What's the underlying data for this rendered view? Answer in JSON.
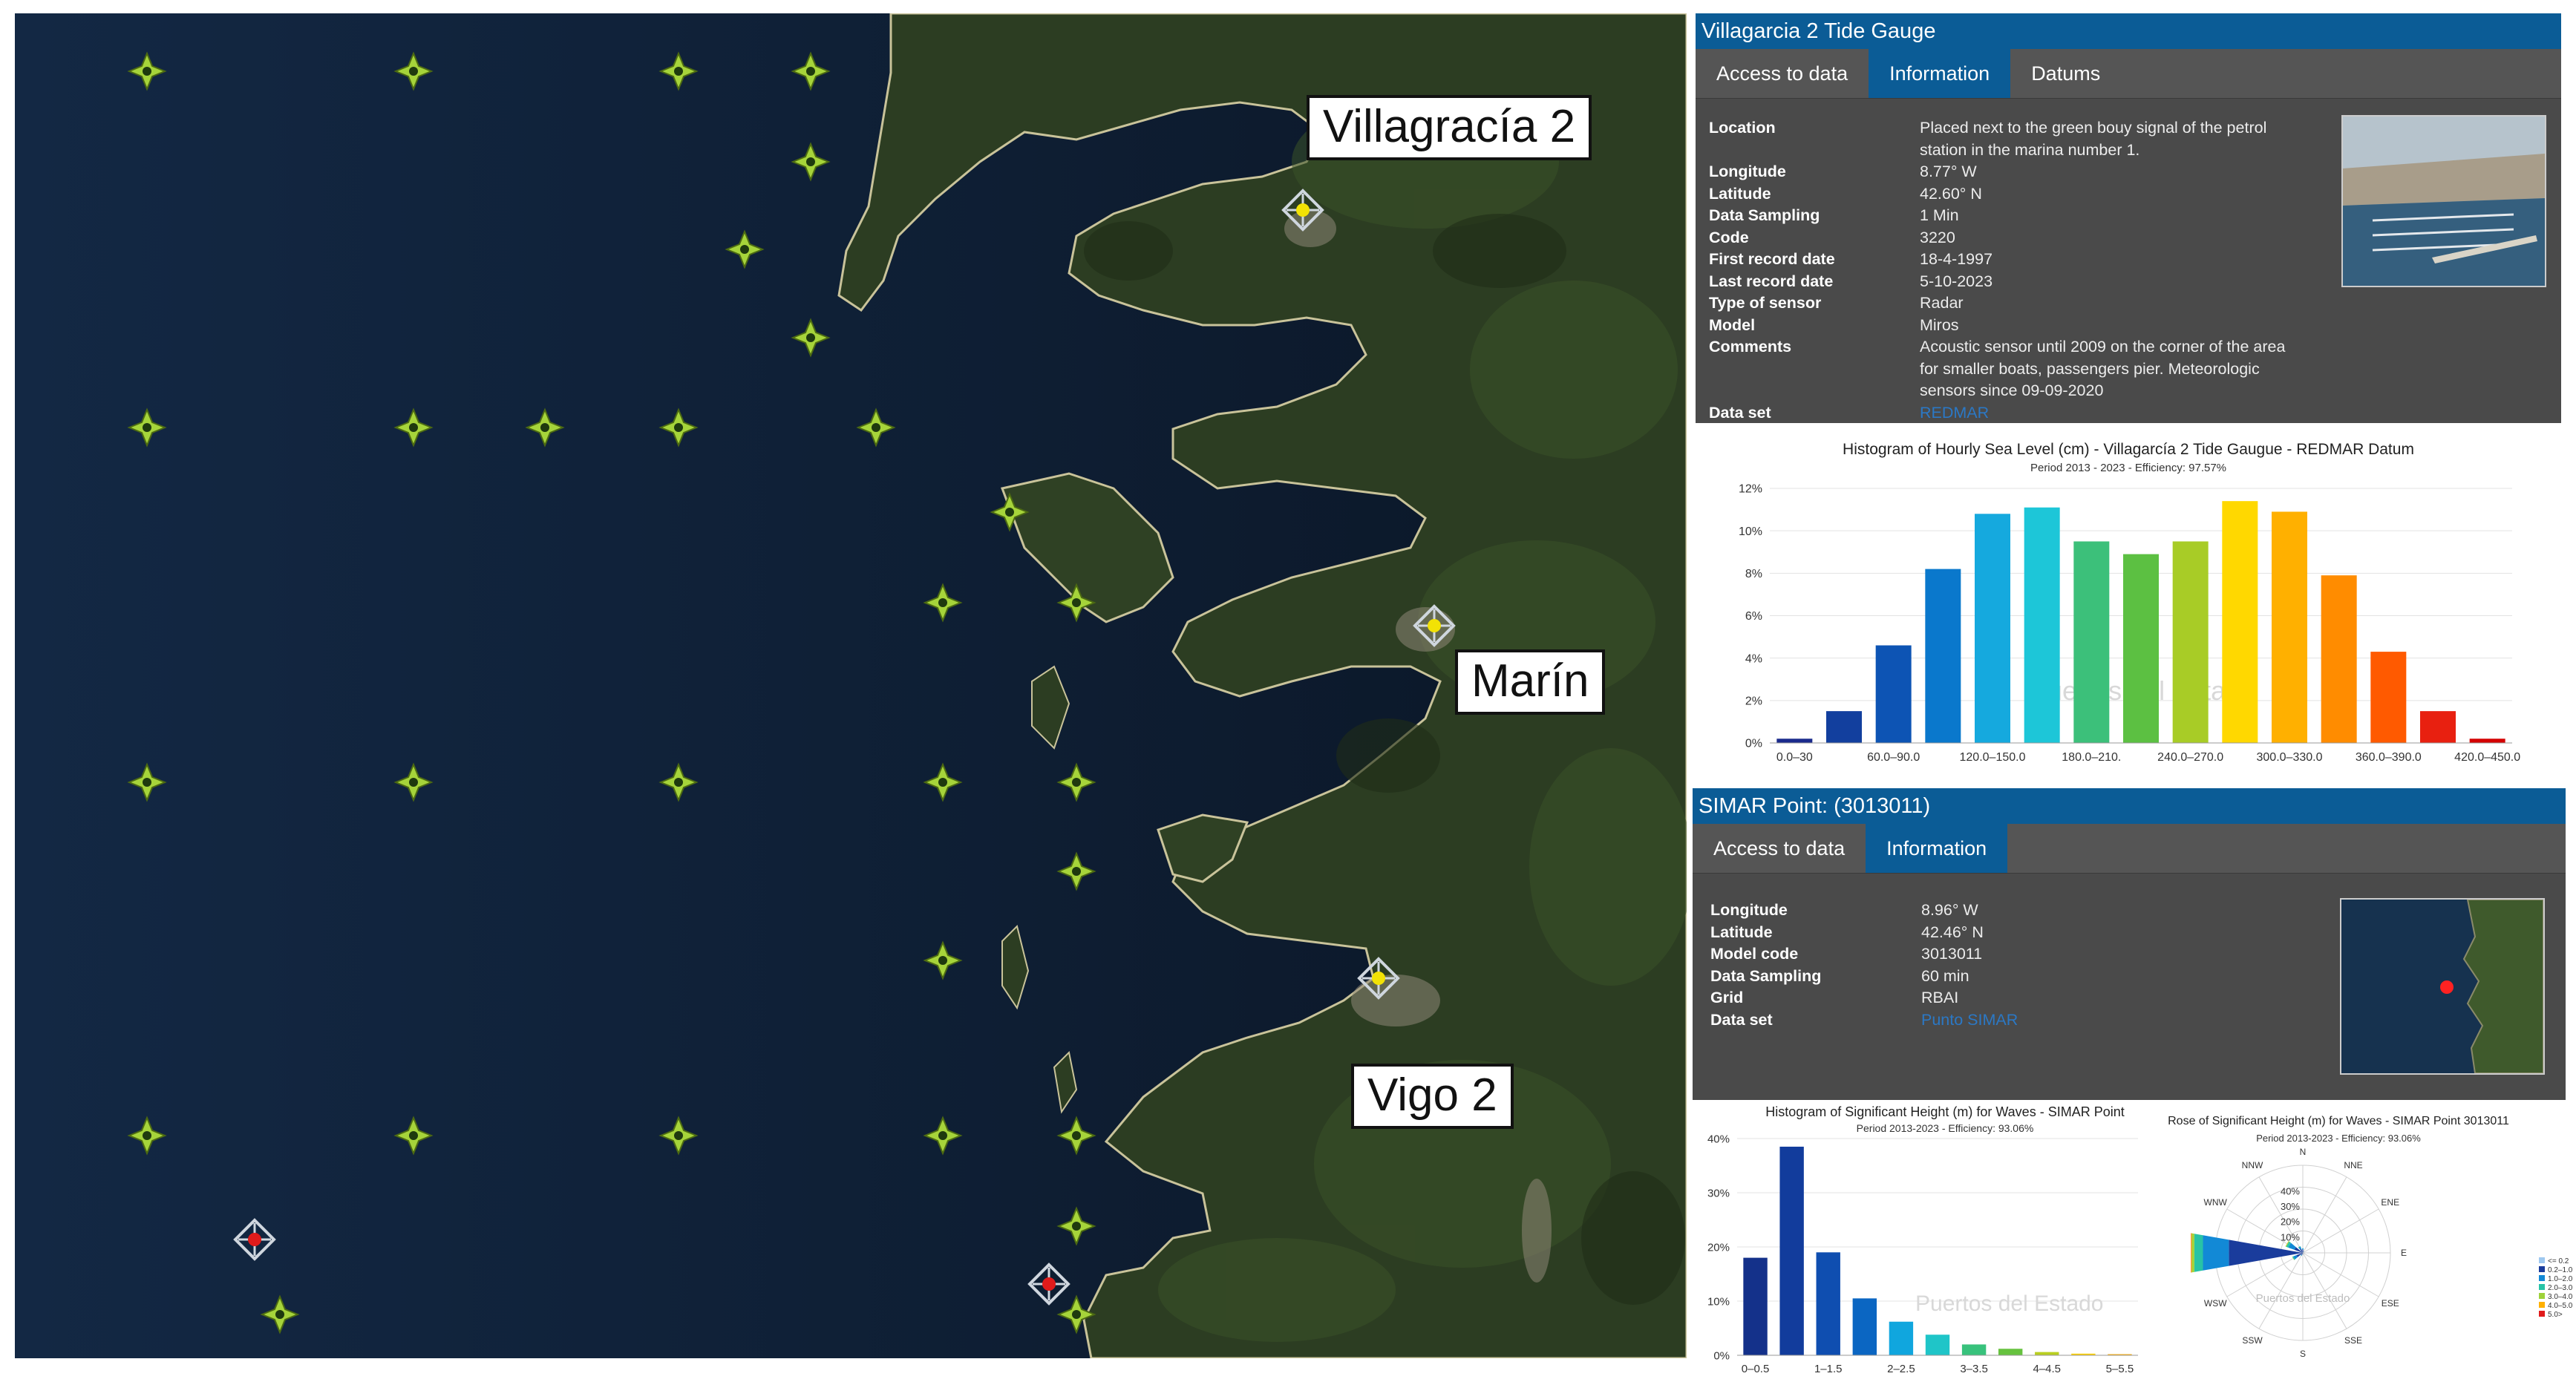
{
  "map": {
    "labels": {
      "villagarcia": "Villagracía 2",
      "marin": "Marín",
      "vigo": "Vigo 2"
    },
    "colors": {
      "sea": "#0d1b2e",
      "land": "#2c3d22",
      "simar_marker": "#a6d43a",
      "tide_marker": "#f2e205",
      "buoy_marker": "#e01b1b"
    }
  },
  "tide_panel": {
    "title": "Villagarcia 2 Tide Gauge",
    "tabs": [
      "Access to data",
      "Information",
      "Datums"
    ],
    "active_tab": "Information",
    "fields": [
      {
        "k": "Location",
        "v": "Placed next to the green bouy signal of the petrol station in the marina number 1."
      },
      {
        "k": "Longitude",
        "v": "8.77° W"
      },
      {
        "k": "Latitude",
        "v": "42.60° N"
      },
      {
        "k": "Data Sampling",
        "v": "1 Min"
      },
      {
        "k": "Code",
        "v": "3220"
      },
      {
        "k": "First record date",
        "v": "18-4-1997"
      },
      {
        "k": "Last record date",
        "v": "5-10-2023"
      },
      {
        "k": "Type of sensor",
        "v": "Radar"
      },
      {
        "k": "Model",
        "v": "Miros"
      },
      {
        "k": "Comments",
        "v": "Acoustic sensor until 2009 on the corner of the area for smaller boats, passengers pier. Meteorologic sensors since 09-09-2020"
      },
      {
        "k": "Data set",
        "v": "REDMAR",
        "link": true
      }
    ]
  },
  "simar_panel": {
    "title": "SIMAR Point: (3013011)",
    "tabs": [
      "Access to data",
      "Information"
    ],
    "active_tab": "Information",
    "fields": [
      {
        "k": "Longitude",
        "v": "8.96° W"
      },
      {
        "k": "Latitude",
        "v": "42.46° N"
      },
      {
        "k": "Model code",
        "v": "3013011"
      },
      {
        "k": "Data Sampling",
        "v": "60 min"
      },
      {
        "k": "Grid",
        "v": "RBAI"
      },
      {
        "k": "Data set",
        "v": "Punto SIMAR",
        "link": true
      }
    ]
  },
  "watermark": "Puertos del Estado",
  "chart_data": [
    {
      "type": "bar",
      "title": "Histogram of Hourly Sea Level (cm) - Villagarcía 2 Tide Gaugue - REDMAR Datum",
      "subtitle": "Period 2013 - 2023 - Efficiency: 97.57%",
      "categories": [
        "0.0–30",
        "30–60",
        "60.0–90.0",
        "90–120",
        "120.0–150.0",
        "150–180",
        "180.0–210.",
        "210–240",
        "240.0–270.0",
        "270–300",
        "300.0–330.0",
        "330–360",
        "360.0–390.0",
        "390–420",
        "420.0–450.0"
      ],
      "shown_tick_labels": [
        "0.0–30",
        "60.0–90.0",
        "120.0–150.0",
        "180.0–210.",
        "240.0–270.0",
        "300.0–330.0",
        "360.0–390.0",
        "420.0–450.0"
      ],
      "values": [
        0.2,
        1.5,
        4.6,
        8.2,
        10.8,
        11.1,
        9.5,
        8.9,
        9.5,
        11.4,
        10.9,
        7.9,
        4.3,
        1.5,
        0.2
      ],
      "colors": [
        "#1a2a8c",
        "#123f9e",
        "#0d54b4",
        "#0a78cc",
        "#15a9de",
        "#1dc6d8",
        "#3cc07a",
        "#5cc042",
        "#a8cc26",
        "#ffd800",
        "#ffb000",
        "#ff8c00",
        "#ff5a00",
        "#e82010",
        "#d40000"
      ],
      "yticks": [
        "0%",
        "2%",
        "4%",
        "6%",
        "8%",
        "10%",
        "12%"
      ],
      "ylim": [
        0,
        12
      ]
    },
    {
      "type": "bar",
      "title": "Histogram of Significant Height (m) for Waves - SIMAR Point",
      "subtitle": "Period 2013-2023 - Efficiency: 93.06%",
      "categories": [
        "0–0.5",
        "0.5–1",
        "1–1.5",
        "1.5–2",
        "2–2.5",
        "2.5–3",
        "3–3.5",
        "3.5–4",
        "4–4.5",
        "4.5–5",
        "5–5.5"
      ],
      "shown_tick_labels": [
        "0–0.5",
        "1–1.5",
        "2–2.5",
        "3–3.5",
        "4–4.5",
        "5–5.5"
      ],
      "values": [
        18,
        38.5,
        19,
        10.5,
        6.2,
        3.8,
        2,
        1.2,
        0.6,
        0.3,
        0.2
      ],
      "colors": [
        "#14318a",
        "#123c9c",
        "#0f4eb0",
        "#0b66c2",
        "#10a6de",
        "#1fc5c8",
        "#38c27c",
        "#66c23e",
        "#b9cf20",
        "#ffd000",
        "#ffaa00"
      ],
      "yticks": [
        "0%",
        "10%",
        "20%",
        "30%",
        "40%"
      ],
      "ylim": [
        0,
        40
      ]
    },
    {
      "type": "rose",
      "title": "Rose of Significant Height (m) for Waves - SIMAR Point 3013011",
      "subtitle": "Period 2013-2023 - Efficiency: 93.06%",
      "directions": [
        "N",
        "NNE",
        "ENE",
        "E",
        "ESE",
        "SSE",
        "S",
        "SSW",
        "WSW",
        "W",
        "WNW",
        "NNW"
      ],
      "ring_labels": [
        "10%",
        "20%",
        "30%",
        "40%"
      ],
      "legend": [
        {
          "label": "<= 0.2",
          "color": "#9ec8f0"
        },
        {
          "label": "0.2–1.0",
          "color": "#1a3c9c"
        },
        {
          "label": "1.0–2.0",
          "color": "#1289d6"
        },
        {
          "label": "2.0–3.0",
          "color": "#28c3a6"
        },
        {
          "label": "3.0–4.0",
          "color": "#9ed23a"
        },
        {
          "label": "4.0–5.0",
          "color": "#ffb000"
        },
        {
          "label": "5.0>",
          "color": "#e01b1b"
        }
      ],
      "sectors": [
        {
          "dir": "W",
          "values": [
            0.3,
            34,
            12,
            4,
            1.2,
            0.3,
            0.1
          ]
        },
        {
          "dir": "WNW",
          "values": [
            0.1,
            4,
            3,
            1,
            0.3,
            0.1,
            0
          ]
        },
        {
          "dir": "WSW",
          "values": [
            0.1,
            3,
            1.5,
            0.5,
            0.1,
            0,
            0
          ]
        },
        {
          "dir": "NNW",
          "values": [
            0,
            2,
            1,
            0.3,
            0,
            0,
            0
          ]
        },
        {
          "dir": "N",
          "values": [
            0,
            1.5,
            0.5,
            0.1,
            0,
            0,
            0
          ]
        },
        {
          "dir": "SSW",
          "values": [
            0,
            1,
            0.4,
            0.1,
            0,
            0,
            0
          ]
        },
        {
          "dir": "NNE",
          "values": [
            0,
            0.6,
            0.2,
            0,
            0,
            0,
            0
          ]
        },
        {
          "dir": "S",
          "values": [
            0,
            0.5,
            0.2,
            0,
            0,
            0,
            0
          ]
        }
      ]
    }
  ]
}
